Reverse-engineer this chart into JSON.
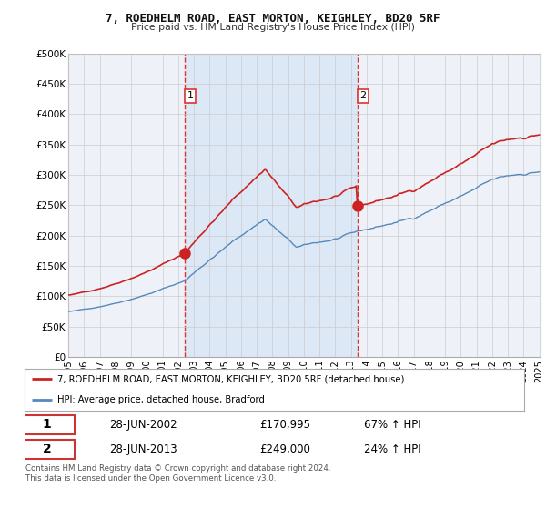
{
  "title": "7, ROEDHELM ROAD, EAST MORTON, KEIGHLEY, BD20 5RF",
  "subtitle": "Price paid vs. HM Land Registry's House Price Index (HPI)",
  "legend_line1": "7, ROEDHELM ROAD, EAST MORTON, KEIGHLEY, BD20 5RF (detached house)",
  "legend_line2": "HPI: Average price, detached house, Bradford",
  "transaction1_date": "28-JUN-2002",
  "transaction1_price": "£170,995",
  "transaction1_hpi": "67% ↑ HPI",
  "transaction2_date": "28-JUN-2013",
  "transaction2_price": "£249,000",
  "transaction2_hpi": "24% ↑ HPI",
  "footer": "Contains HM Land Registry data © Crown copyright and database right 2024.\nThis data is licensed under the Open Government Licence v3.0.",
  "hpi_color": "#5588bb",
  "price_color": "#cc2222",
  "vline_color": "#dd3333",
  "background_color": "#ffffff",
  "plot_bg_color": "#eef2f8",
  "shade_color": "#dce8f5",
  "ylim": [
    0,
    500000
  ],
  "yticks": [
    0,
    50000,
    100000,
    150000,
    200000,
    250000,
    300000,
    350000,
    400000,
    450000,
    500000
  ],
  "price_t1": 170995,
  "price_t2": 249000,
  "t1_year": 2002,
  "t1_month": 6,
  "t2_year": 2013,
  "t2_month": 6
}
